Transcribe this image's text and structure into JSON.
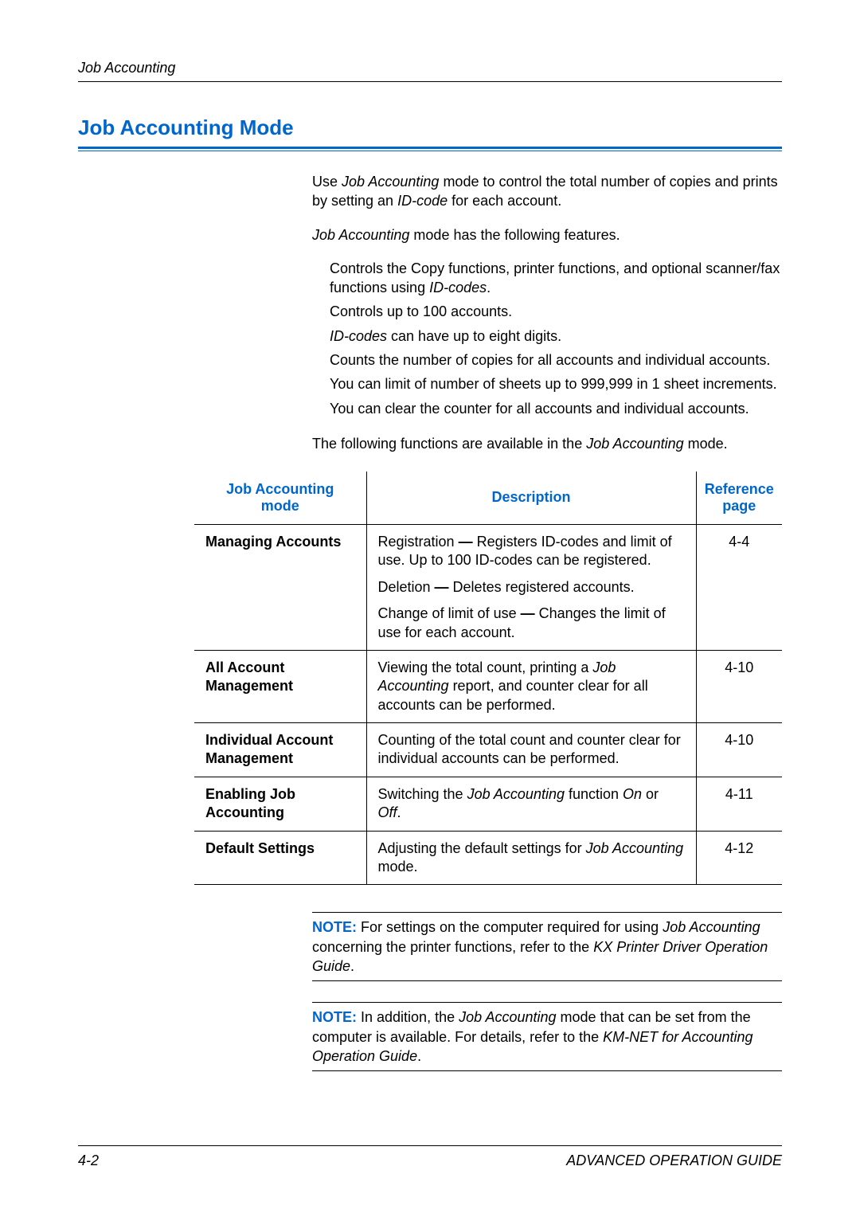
{
  "header": {
    "section_name": "Job Accounting"
  },
  "heading": {
    "title": "Job Accounting Mode"
  },
  "intro": {
    "p1_prefix": "Use ",
    "p1_mode": "Job Accounting",
    "p1_mid": " mode to control the total number of copies and prints by setting an ",
    "p1_idcode": "ID-code",
    "p1_suffix": " for each account.",
    "p2_mode": "Job Accounting",
    "p2_suffix": " mode has the following features."
  },
  "features": {
    "f1_prefix": "Controls the Copy functions, printer functions, and optional scanner/fax functions using ",
    "f1_idcodes": "ID-codes",
    "f1_suffix": ".",
    "f2": "Controls up to 100 accounts.",
    "f3_idcodes": "ID-codes",
    "f3_suffix": " can have up to eight digits.",
    "f4": "Counts the number of copies for all accounts and individual accounts.",
    "f5": "You can limit of number of sheets up to 999,999 in 1 sheet increments.",
    "f6": "You can clear the counter for all accounts and individual accounts."
  },
  "table_intro": {
    "prefix": "The following functions are available in the ",
    "mode": "Job Accounting",
    "suffix": " mode."
  },
  "table": {
    "headers": {
      "col1_line1": "Job Accounting",
      "col1_line2": "mode",
      "col2": "Description",
      "col3_line1": "Reference",
      "col3_line2": "page"
    },
    "rows": [
      {
        "mode": "Managing Accounts",
        "desc1_prefix": "Registration ",
        "desc1_dash": "—",
        "desc1_suffix": " Registers ID-codes and limit of use. Up to 100 ID-codes can be registered.",
        "desc2_prefix": "Deletion ",
        "desc2_dash": "—",
        "desc2_suffix": " Deletes registered accounts.",
        "desc3_prefix": "Change of limit of use ",
        "desc3_dash": "—",
        "desc3_suffix": " Changes the limit of use for each account.",
        "ref": "4-4"
      },
      {
        "mode": "All Account Management",
        "desc_prefix": "Viewing the total count, printing a ",
        "desc_italic": "Job Accounting",
        "desc_suffix": " report, and counter clear for all accounts can be performed.",
        "ref": "4-10"
      },
      {
        "mode": "Individual Account Management",
        "desc": "Counting of the total count and counter clear for individual accounts can be performed.",
        "ref": "4-10"
      },
      {
        "mode": "Enabling Job Accounting",
        "desc_prefix": "Switching the ",
        "desc_italic1": "Job Accounting",
        "desc_mid": " function ",
        "desc_italic2": "On",
        "desc_or": " or ",
        "desc_italic3": "Off",
        "desc_suffix": ".",
        "ref": "4-11"
      },
      {
        "mode": "Default Settings",
        "desc_prefix": "Adjusting the default settings for ",
        "desc_italic": "Job Accounting",
        "desc_suffix": " mode.",
        "ref": "4-12"
      }
    ]
  },
  "notes": {
    "label": "NOTE:",
    "note1_prefix": " For settings on the computer required for using ",
    "note1_italic1": "Job Accounting",
    "note1_mid": " concerning the printer functions, refer to the ",
    "note1_italic2": "KX Printer Driver Operation Guide",
    "note1_suffix": ".",
    "note2_prefix": " In addition, the ",
    "note2_italic1": "Job Accounting",
    "note2_mid": " mode that can be set from the computer is available. For details, refer to the ",
    "note2_italic2": "KM-NET for Accounting Operation Guide",
    "note2_suffix": "."
  },
  "footer": {
    "page_number": "4-2",
    "guide_name": "ADVANCED OPERATION GUIDE"
  }
}
